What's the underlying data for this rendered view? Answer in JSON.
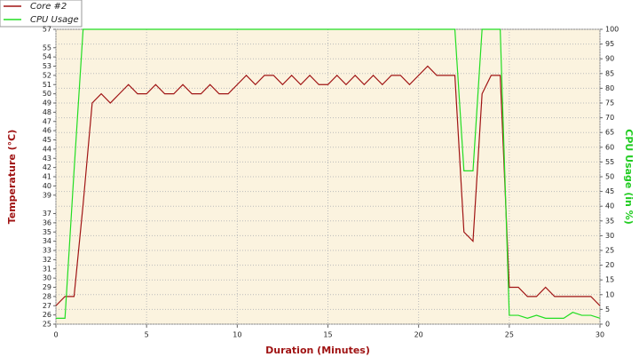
{
  "chart_data": {
    "type": "line",
    "x_label": "Duration (Minutes)",
    "y_label": "Temperature (°C)",
    "y2_label": "CPU Usage (in %)",
    "x": [
      0,
      0.5,
      1,
      1.5,
      2,
      2.5,
      3,
      3.5,
      4,
      4.5,
      5,
      5.5,
      6,
      6.5,
      7,
      7.5,
      8,
      8.5,
      9,
      9.5,
      10,
      10.5,
      11,
      11.5,
      12,
      12.5,
      13,
      13.5,
      14,
      14.5,
      15,
      15.5,
      16,
      16.5,
      17,
      17.5,
      18,
      18.5,
      19,
      19.5,
      20,
      20.5,
      21,
      21.5,
      22,
      22.5,
      23,
      23.5,
      24,
      24.5,
      25,
      25.5,
      26,
      26.5,
      27,
      27.5,
      28,
      28.5,
      29,
      29.5,
      30
    ],
    "series": [
      {
        "name": "Core #2",
        "color": "#a01414",
        "axis": "y",
        "values": [
          27,
          28,
          28,
          38,
          49,
          50,
          49,
          50,
          51,
          50,
          50,
          51,
          50,
          50,
          51,
          50,
          50,
          51,
          50,
          50,
          51,
          52,
          51,
          52,
          52,
          51,
          52,
          51,
          52,
          51,
          51,
          52,
          51,
          52,
          51,
          52,
          51,
          52,
          52,
          51,
          52,
          53,
          52,
          52,
          52,
          35,
          34,
          50,
          52,
          52,
          29,
          29,
          28,
          28,
          29,
          28,
          28,
          28,
          28,
          28,
          27
        ]
      },
      {
        "name": "CPU Usage",
        "color": "#22dd22",
        "axis": "y2",
        "values": [
          2,
          2,
          52,
          100,
          100,
          100,
          100,
          100,
          100,
          100,
          100,
          100,
          100,
          100,
          100,
          100,
          100,
          100,
          100,
          100,
          100,
          100,
          100,
          100,
          100,
          100,
          100,
          100,
          100,
          100,
          100,
          100,
          100,
          100,
          100,
          100,
          100,
          100,
          100,
          100,
          100,
          100,
          100,
          100,
          100,
          52,
          52,
          100,
          100,
          100,
          3,
          3,
          2,
          3,
          2,
          2,
          2,
          4,
          3,
          3,
          2
        ]
      }
    ],
    "xlim": [
      0,
      30
    ],
    "xticks": [
      0,
      5,
      10,
      15,
      20,
      25,
      30
    ],
    "ylim": [
      25,
      57
    ],
    "yticks": [
      25,
      26,
      27,
      28,
      29,
      30,
      31,
      32,
      33,
      34,
      35,
      36,
      37,
      39,
      40,
      41,
      42,
      43,
      44,
      45,
      46,
      47,
      48,
      49,
      50,
      51,
      52,
      53,
      54,
      55,
      57
    ],
    "y2lim": [
      0,
      100
    ],
    "y2ticks": [
      0,
      5,
      10,
      15,
      20,
      25,
      30,
      35,
      40,
      45,
      50,
      55,
      60,
      65,
      70,
      75,
      80,
      85,
      90,
      95,
      100
    ],
    "grid": true,
    "legend": "top-left"
  }
}
